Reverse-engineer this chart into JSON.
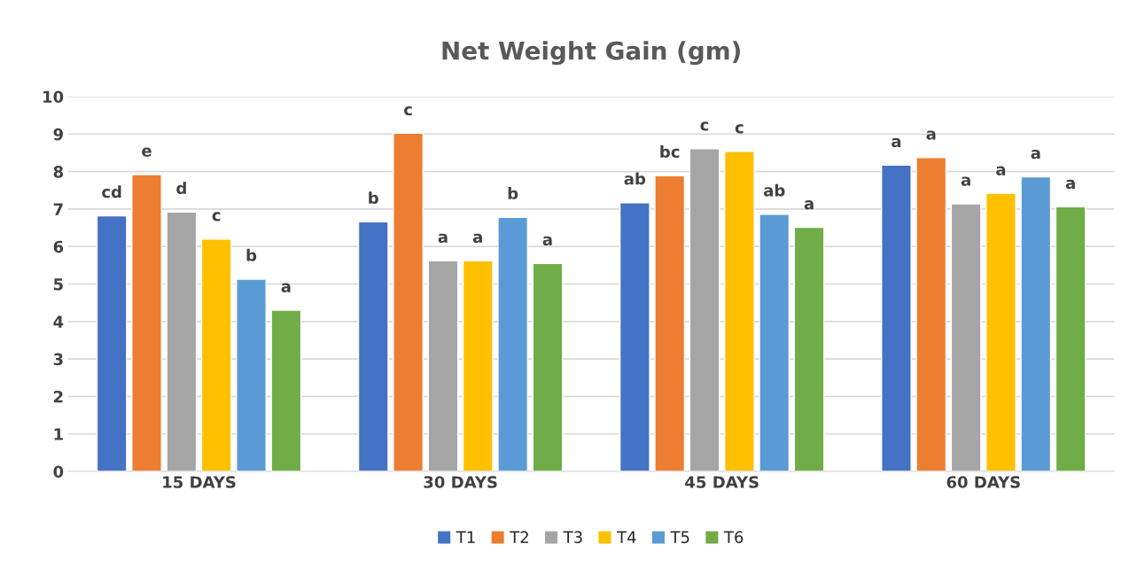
{
  "chart_data": {
    "type": "bar",
    "title": "Net Weight Gain (gm)",
    "categories": [
      "15 DAYS",
      "30 DAYS",
      "45 DAYS",
      "60 DAYS"
    ],
    "series": [
      {
        "name": "T1",
        "color": "#4472c4",
        "values": [
          6.82,
          6.66,
          7.17,
          8.17
        ],
        "value_labels": [
          "cd",
          "b",
          "ab",
          "a"
        ]
      },
      {
        "name": "T2",
        "color": "#ed7d31",
        "values": [
          7.92,
          9.02,
          7.89,
          8.37
        ],
        "value_labels": [
          "e",
          "c",
          "bc",
          "a"
        ]
      },
      {
        "name": "T3",
        "color": "#a5a5a5",
        "values": [
          6.92,
          5.62,
          8.61,
          7.14
        ],
        "value_labels": [
          "d",
          "a",
          "c",
          "a"
        ]
      },
      {
        "name": "T4",
        "color": "#ffc000",
        "values": [
          6.2,
          5.62,
          8.54,
          7.42
        ],
        "value_labels": [
          "c",
          "a",
          "c",
          "a"
        ]
      },
      {
        "name": "T5",
        "color": "#5b9bd5",
        "values": [
          5.13,
          6.78,
          6.86,
          7.86
        ],
        "value_labels": [
          "b",
          "b",
          "ab",
          "a"
        ]
      },
      {
        "name": "T6",
        "color": "#70ad47",
        "values": [
          4.3,
          5.55,
          6.51,
          7.06
        ],
        "value_labels": [
          "a",
          "a",
          "a",
          "a"
        ]
      }
    ],
    "ylim": [
      0,
      10
    ],
    "yticks": [
      0,
      1,
      2,
      3,
      4,
      5,
      6,
      7,
      8,
      9,
      10
    ],
    "grid": "y",
    "legend": "bottom"
  }
}
